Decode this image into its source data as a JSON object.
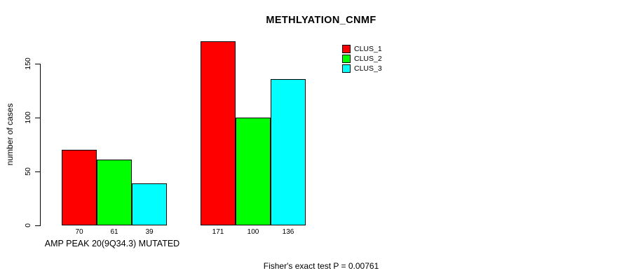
{
  "chart_data": {
    "type": "bar",
    "title": "METHLYATION_CNMF",
    "ylabel": "number of cases",
    "group_label": "AMP PEAK 20(9Q34.3) MUTATED",
    "annotation": "Fisher's exact test P = 0.00761",
    "yticks": [
      0,
      50,
      100,
      150
    ],
    "ylim": [
      0,
      175
    ],
    "grid": false,
    "legend_position": "top-right",
    "categories": [
      "AMP PEAK 20(9Q34.3) MUTATED",
      ""
    ],
    "series": [
      {
        "name": "CLUS_1",
        "color": "#ff0000",
        "values": [
          70,
          171
        ]
      },
      {
        "name": "CLUS_2",
        "color": "#00ff00",
        "values": [
          61,
          100
        ]
      },
      {
        "name": "CLUS_3",
        "color": "#00ffff",
        "values": [
          39,
          136
        ]
      }
    ],
    "bar_value_labels": [
      [
        70,
        61,
        39
      ],
      [
        171,
        100,
        136
      ]
    ]
  }
}
